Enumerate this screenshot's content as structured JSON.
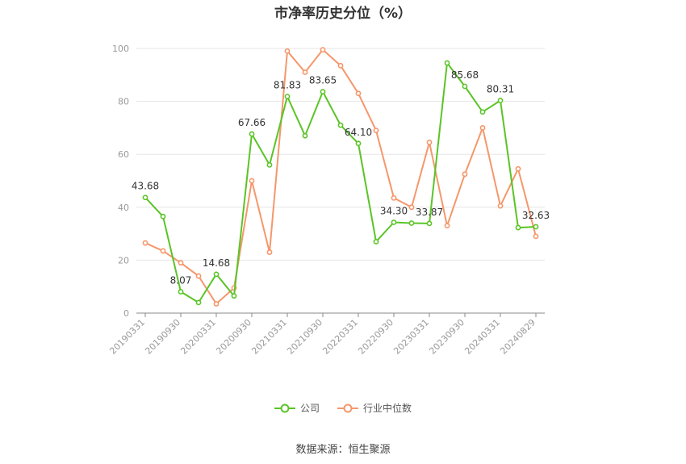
{
  "chart_data": {
    "type": "line",
    "title": "市净率历史分位（%）",
    "ylim": [
      0,
      100
    ],
    "yticks": [
      0,
      20,
      40,
      60,
      80,
      100
    ],
    "x_tick_labels": [
      "20190331",
      "20190930",
      "20200331",
      "20200930",
      "20210331",
      "20210930",
      "20220331",
      "20220930",
      "20230331",
      "20230930",
      "20240331",
      "20240829"
    ],
    "grid": true,
    "legend_position": "bottom",
    "series": [
      {
        "name": "公司",
        "color": "#5ac427",
        "values": [
          43.68,
          36.5,
          8.07,
          4.0,
          14.68,
          6.5,
          67.66,
          56.0,
          81.83,
          67.0,
          83.65,
          71.0,
          64.1,
          27.0,
          34.3,
          34.0,
          33.87,
          94.5,
          85.68,
          76.0,
          80.31,
          32.3,
          32.63
        ],
        "data_labels": {
          "0": "43.68",
          "2": "8.07",
          "4": "14.68",
          "6": "67.66",
          "8": "81.83",
          "10": "83.65",
          "12": "64.10",
          "14": "34.30",
          "16": "33.87",
          "18": "85.68",
          "20": "80.31",
          "22": "32.63"
        }
      },
      {
        "name": "行业中位数",
        "color": "#f5976b",
        "values": [
          26.5,
          23.5,
          19.0,
          14.0,
          3.5,
          9.5,
          50.0,
          23.0,
          99.0,
          91.0,
          99.5,
          93.5,
          83.0,
          69.0,
          43.5,
          40.0,
          64.5,
          33.0,
          52.5,
          70.0,
          40.5,
          54.5,
          29.0
        ]
      }
    ]
  },
  "source_text": "数据来源：恒生聚源"
}
